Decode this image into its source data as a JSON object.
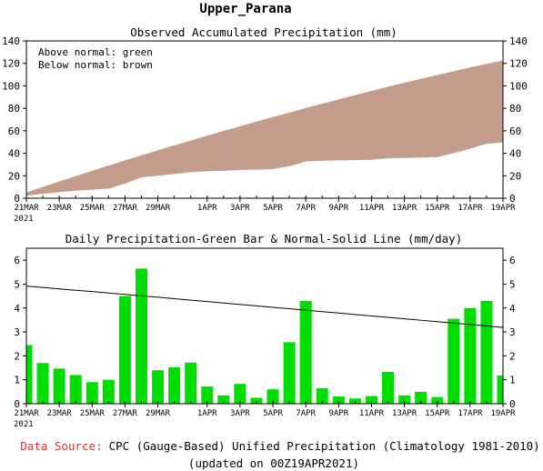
{
  "title": "Upper_Parana",
  "chart_data": [
    {
      "type": "area",
      "title": "Observed Accumulated Precipitation (mm)",
      "legend": [
        "Above normal: green",
        "Below normal: brown"
      ],
      "legend_position": "top-left",
      "x": [
        "21MAR",
        "22MAR",
        "23MAR",
        "24MAR",
        "25MAR",
        "26MAR",
        "27MAR",
        "28MAR",
        "29MAR",
        "30MAR",
        "31MAR",
        "1APR",
        "2APR",
        "3APR",
        "4APR",
        "5APR",
        "6APR",
        "7APR",
        "8APR",
        "9APR",
        "10APR",
        "11APR",
        "12APR",
        "13APR",
        "14APR",
        "15APR",
        "16APR",
        "17APR",
        "18APR",
        "19APR"
      ],
      "x_tick_labels": [
        "21MAR",
        "23MAR",
        "25MAR",
        "27MAR",
        "29MAR",
        "1APR",
        "3APR",
        "5APR",
        "7APR",
        "9APR",
        "11APR",
        "13APR",
        "15APR",
        "17APR",
        "19APR"
      ],
      "x_year_label": "2021",
      "ylim": [
        0,
        140
      ],
      "y_ticks": [
        0,
        20,
        40,
        60,
        80,
        100,
        120,
        140
      ],
      "series": [
        {
          "name": "Observed",
          "values": [
            2.5,
            4.2,
            5.7,
            6.9,
            7.8,
            8.8,
            13.3,
            18.9,
            20.3,
            21.8,
            23.5,
            24.2,
            24.6,
            25.4,
            25.6,
            26.2,
            28.7,
            33.0,
            33.6,
            33.9,
            34.1,
            34.4,
            35.7,
            36.1,
            36.6,
            36.9,
            40.4,
            44.4,
            48.7,
            49.9
          ]
        },
        {
          "name": "Normal",
          "values": [
            4.9,
            9.8,
            14.6,
            19.4,
            24.1,
            28.8,
            33.4,
            37.9,
            42.4,
            46.8,
            51.1,
            55.4,
            59.6,
            63.8,
            67.9,
            72.0,
            76.0,
            80.0,
            83.9,
            87.7,
            91.5,
            95.2,
            98.9,
            102.5,
            106.0,
            109.4,
            112.8,
            116.1,
            119.3,
            122.4
          ]
        }
      ],
      "fill_colors": {
        "above": "#00dd00",
        "below": "#c49c8c"
      }
    },
    {
      "type": "bar",
      "title": "Daily Precipitation-Green Bar & Normal-Solid Line (mm/day)",
      "x": [
        "21MAR",
        "22MAR",
        "23MAR",
        "24MAR",
        "25MAR",
        "26MAR",
        "27MAR",
        "28MAR",
        "29MAR",
        "30MAR",
        "31MAR",
        "1APR",
        "2APR",
        "3APR",
        "4APR",
        "5APR",
        "6APR",
        "7APR",
        "8APR",
        "9APR",
        "10APR",
        "11APR",
        "12APR",
        "13APR",
        "14APR",
        "15APR",
        "16APR",
        "17APR",
        "18APR",
        "19APR"
      ],
      "x_tick_labels": [
        "21MAR",
        "23MAR",
        "25MAR",
        "27MAR",
        "29MAR",
        "1APR",
        "3APR",
        "5APR",
        "7APR",
        "9APR",
        "11APR",
        "13APR",
        "15APR",
        "17APR",
        "19APR"
      ],
      "x_year_label": "2021",
      "ylim": [
        0,
        6.5
      ],
      "y_ticks": [
        0,
        1,
        2,
        3,
        4,
        5,
        6
      ],
      "series": [
        {
          "name": "Daily Precipitation",
          "type": "bar",
          "values": [
            2.45,
            1.7,
            1.47,
            1.2,
            0.9,
            1.0,
            4.5,
            5.65,
            1.4,
            1.52,
            1.72,
            0.72,
            0.35,
            0.83,
            0.25,
            0.6,
            2.57,
            4.3,
            0.65,
            0.3,
            0.22,
            0.32,
            1.33,
            0.35,
            0.5,
            0.28,
            3.55,
            4.0,
            4.3,
            1.18
          ]
        },
        {
          "name": "Normal",
          "type": "line",
          "values": [
            4.92,
            4.86,
            4.8,
            4.74,
            4.69,
            4.63,
            4.57,
            4.51,
            4.45,
            4.39,
            4.33,
            4.27,
            4.21,
            4.15,
            4.09,
            4.03,
            3.97,
            3.91,
            3.85,
            3.79,
            3.73,
            3.67,
            3.61,
            3.55,
            3.49,
            3.43,
            3.37,
            3.31,
            3.25,
            3.19
          ]
        }
      ],
      "colors": {
        "bar": "#00dd00",
        "line": "#000000"
      }
    }
  ],
  "footer": {
    "source_label": "Data Source:",
    "source_text": "CPC (Gauge-Based) Unified Precipitation (Climatology 1981-2010)",
    "updated": "(updated on 00Z19APR2021)"
  }
}
